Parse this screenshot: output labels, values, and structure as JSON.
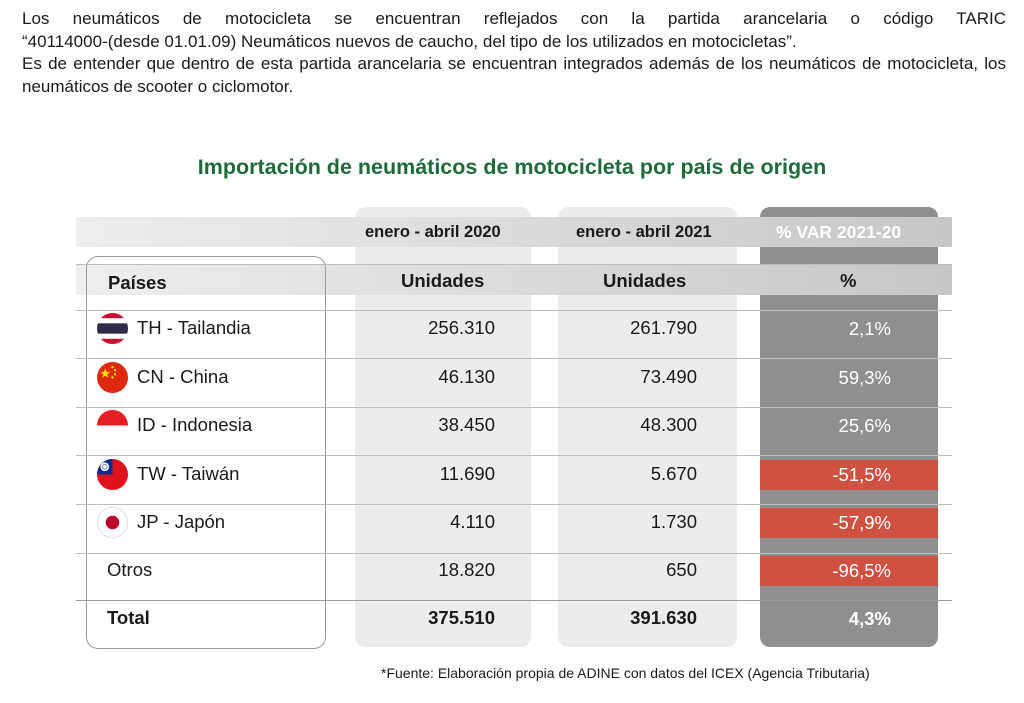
{
  "intro": {
    "line1": "Los neumáticos de motocicleta se encuentran reflejados con la partida arancelaria o código TARIC",
    "line2": "“40114000-(desde 01.01.09) Neumáticos nuevos de caucho, del tipo de los utilizados en motocicletas”.",
    "para2": "Es de entender que dentro de esta partida arancelaria se encuentran integrados además de los neumáticos de motocicleta, los neumáticos de scooter o ciclomotor."
  },
  "table": {
    "title": "Importación de neumáticos de motocicleta por país de origen",
    "periods": [
      "enero - abril  2020",
      "enero - abril 2021",
      "% VAR 2021-20"
    ],
    "headers": [
      "Países",
      "Unidades",
      "Unidades",
      "%"
    ],
    "rows": [
      {
        "flag": "thailand-flag-icon",
        "country": "TH - Tailandia",
        "v2020": "256.310",
        "v2021": "261.790",
        "var": "2,1%",
        "negative": false
      },
      {
        "flag": "china-flag-icon",
        "country": "CN - China",
        "v2020": "46.130",
        "v2021": "73.490",
        "var": "59,3%",
        "negative": false
      },
      {
        "flag": "indonesia-flag-icon",
        "country": "ID - Indonesia",
        "v2020": "38.450",
        "v2021": "48.300",
        "var": "25,6%",
        "negative": false
      },
      {
        "flag": "taiwan-flag-icon",
        "country": "TW - Taiwán",
        "v2020": "11.690",
        "v2021": "5.670",
        "var": "-51,5%",
        "negative": true
      },
      {
        "flag": "japan-flag-icon",
        "country": "JP - Japón",
        "v2020": "4.110",
        "v2021": "1.730",
        "var": "-57,9%",
        "negative": true
      },
      {
        "flag": "",
        "country": "Otros",
        "v2020": "18.820",
        "v2021": "650",
        "var": "-96,5%",
        "negative": true
      }
    ],
    "total": {
      "label": "Total",
      "v2020": "375.510",
      "v2021": "391.630",
      "var": "4,3%"
    },
    "colors": {
      "title_green": "#1e6b3a",
      "negative_red": "#cf5142",
      "var_column": "#8f8f8f"
    }
  },
  "footnote": "*Fuente: Elaboración propia de ADINE con datos del ICEX (Agencia Tributaria)"
}
